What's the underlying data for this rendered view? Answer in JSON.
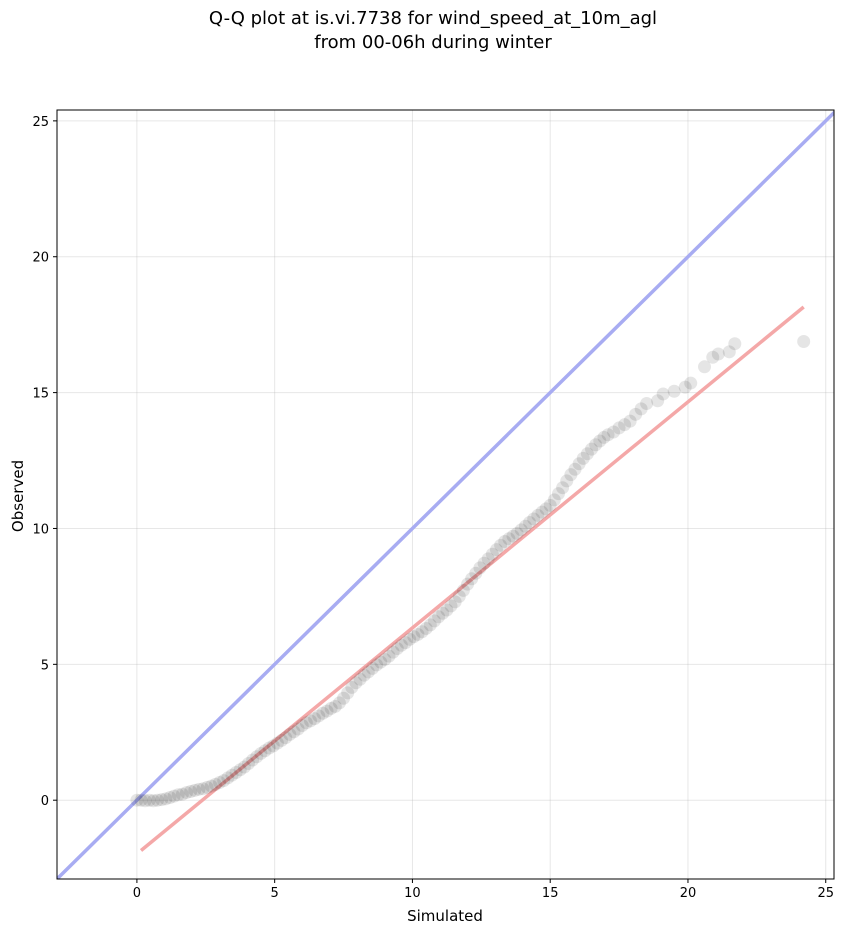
{
  "chart_data": {
    "type": "scatter",
    "title_lines": [
      "Q-Q plot at is.vi.7738 for wind_speed_at_10m_agl",
      "from 00-06h during winter"
    ],
    "xlabel": "Simulated",
    "ylabel": "Observed",
    "xlim": [
      -2.9,
      25.3
    ],
    "ylim": [
      -2.9,
      25.4
    ],
    "x_ticks": [
      0,
      5,
      10,
      15,
      20,
      25
    ],
    "y_ticks": [
      0,
      5,
      10,
      15,
      20,
      25
    ],
    "grid": true,
    "colors": {
      "identity_line": "#a8acf2",
      "fit_line": "#f4a8a8",
      "points": "#000000"
    },
    "identity_line": {
      "x": [
        -2.9,
        25.4
      ],
      "y": [
        -2.9,
        25.4
      ]
    },
    "fit_line": {
      "x": [
        0.15,
        24.2
      ],
      "y": [
        -1.85,
        18.15
      ]
    },
    "series": [
      {
        "x": [
          0.0,
          0.15,
          0.3,
          0.45,
          0.6,
          0.75,
          0.9,
          1.05,
          1.2,
          1.35,
          1.5,
          1.65,
          1.8,
          1.95,
          2.1,
          2.25,
          2.4,
          2.55,
          2.7,
          2.85,
          3.0,
          3.15,
          3.3,
          3.45,
          3.6,
          3.75,
          3.9,
          4.05,
          4.2,
          4.35,
          4.5,
          4.65,
          4.8,
          4.95,
          5.1,
          5.25,
          5.4,
          5.55,
          5.7,
          5.85,
          6.0,
          6.15,
          6.3,
          6.45,
          6.6,
          6.75,
          6.9,
          7.05,
          7.2,
          7.35,
          7.5,
          7.65,
          7.8,
          7.95,
          8.1,
          8.25,
          8.4,
          8.55,
          8.7,
          8.85,
          9.0,
          9.15,
          9.3,
          9.45,
          9.6,
          9.75,
          9.9,
          10.05,
          10.2,
          10.35,
          10.5,
          10.65,
          10.8,
          10.95,
          11.1,
          11.25,
          11.4,
          11.55,
          11.7,
          11.85,
          12.0,
          12.15,
          12.3,
          12.45,
          12.6,
          12.75,
          12.9,
          13.05,
          13.2,
          13.35,
          13.5,
          13.65,
          13.8,
          13.95,
          14.1,
          14.25,
          14.4,
          14.55,
          14.7,
          14.85,
          15.0,
          15.15,
          15.3,
          15.45,
          15.6,
          15.75,
          15.9,
          16.05,
          16.2,
          16.35,
          16.5,
          16.65,
          16.8,
          16.95,
          17.1,
          17.3,
          17.5,
          17.7,
          17.9,
          18.1,
          18.3,
          18.5,
          18.9,
          19.1,
          19.5,
          19.9,
          20.1,
          20.6,
          20.9,
          21.1,
          21.5,
          21.7,
          24.2
        ],
        "y": [
          0.0,
          0.0,
          -0.02,
          0.0,
          -0.02,
          0.0,
          0.02,
          0.05,
          0.1,
          0.15,
          0.2,
          0.22,
          0.28,
          0.32,
          0.36,
          0.4,
          0.42,
          0.47,
          0.52,
          0.58,
          0.65,
          0.72,
          0.82,
          0.92,
          1.02,
          1.12,
          1.22,
          1.35,
          1.48,
          1.6,
          1.72,
          1.82,
          1.92,
          2.0,
          2.1,
          2.2,
          2.3,
          2.42,
          2.52,
          2.62,
          2.75,
          2.85,
          2.92,
          3.0,
          3.1,
          3.2,
          3.28,
          3.38,
          3.45,
          3.58,
          3.75,
          3.95,
          4.15,
          4.32,
          4.45,
          4.6,
          4.72,
          4.85,
          4.98,
          5.08,
          5.18,
          5.3,
          5.45,
          5.58,
          5.7,
          5.8,
          5.92,
          6.02,
          6.1,
          6.2,
          6.32,
          6.45,
          6.6,
          6.75,
          6.88,
          7.0,
          7.15,
          7.3,
          7.5,
          7.72,
          7.95,
          8.15,
          8.35,
          8.55,
          8.72,
          8.88,
          9.05,
          9.22,
          9.38,
          9.52,
          9.62,
          9.72,
          9.82,
          9.95,
          10.08,
          10.22,
          10.35,
          10.48,
          10.6,
          10.72,
          10.85,
          11.05,
          11.28,
          11.5,
          11.75,
          11.98,
          12.18,
          12.38,
          12.58,
          12.75,
          12.92,
          13.08,
          13.22,
          13.35,
          13.45,
          13.55,
          13.7,
          13.82,
          13.95,
          14.2,
          14.4,
          14.6,
          14.7,
          14.95,
          15.05,
          15.2,
          15.35,
          15.95,
          16.3,
          16.42,
          16.5,
          16.8,
          16.88
        ]
      }
    ]
  }
}
